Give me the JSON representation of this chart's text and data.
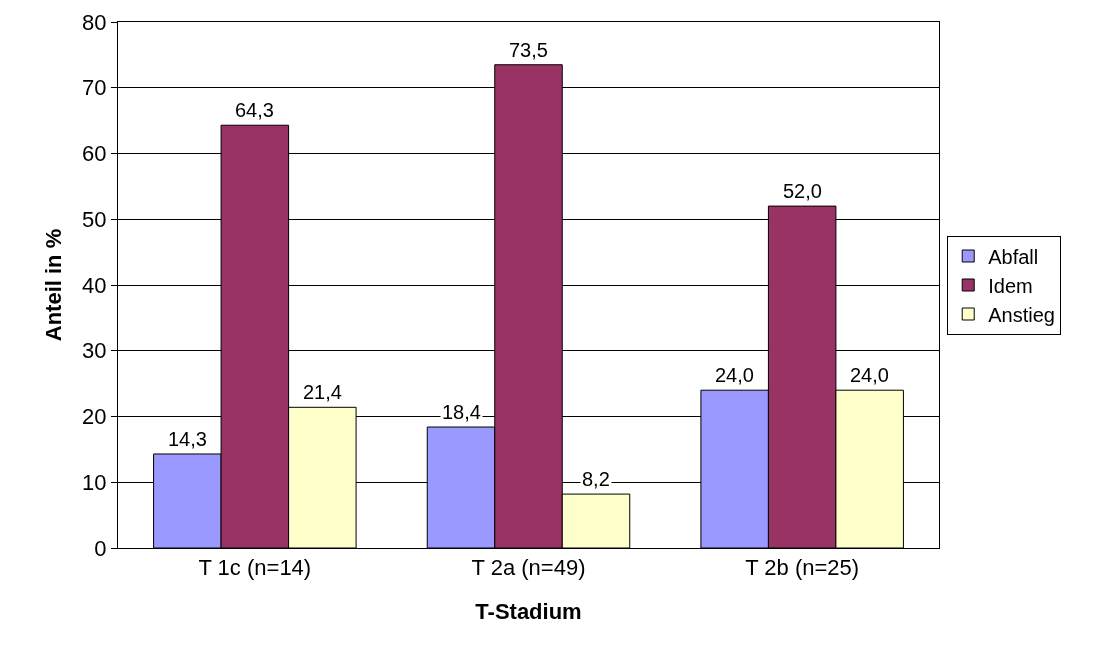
{
  "chart_data": {
    "type": "bar",
    "xlabel": "T-Stadium",
    "ylabel": "Anteil in %",
    "categories": [
      "T 1c (n=14)",
      "T 2a (n=49)",
      "T 2b (n=25)"
    ],
    "series": [
      {
        "name": "Abfall",
        "color": "#9999ff",
        "values": [
          14.3,
          18.4,
          24.0
        ],
        "value_labels": [
          "14,3",
          "18,4",
          "24,0"
        ]
      },
      {
        "name": "Idem",
        "color": "#993366",
        "values": [
          64.3,
          73.5,
          52.0
        ],
        "value_labels": [
          "64,3",
          "73,5",
          "52,0"
        ]
      },
      {
        "name": "Anstieg",
        "color": "#ffffcc",
        "values": [
          21.4,
          8.2,
          24.0
        ],
        "value_labels": [
          "21,4",
          "8,2",
          "24,0"
        ]
      }
    ],
    "ylim": [
      0,
      80
    ],
    "yticks": [
      0,
      10,
      20,
      30,
      40,
      50,
      60,
      70,
      80
    ],
    "grid": "y",
    "legend": "right"
  }
}
